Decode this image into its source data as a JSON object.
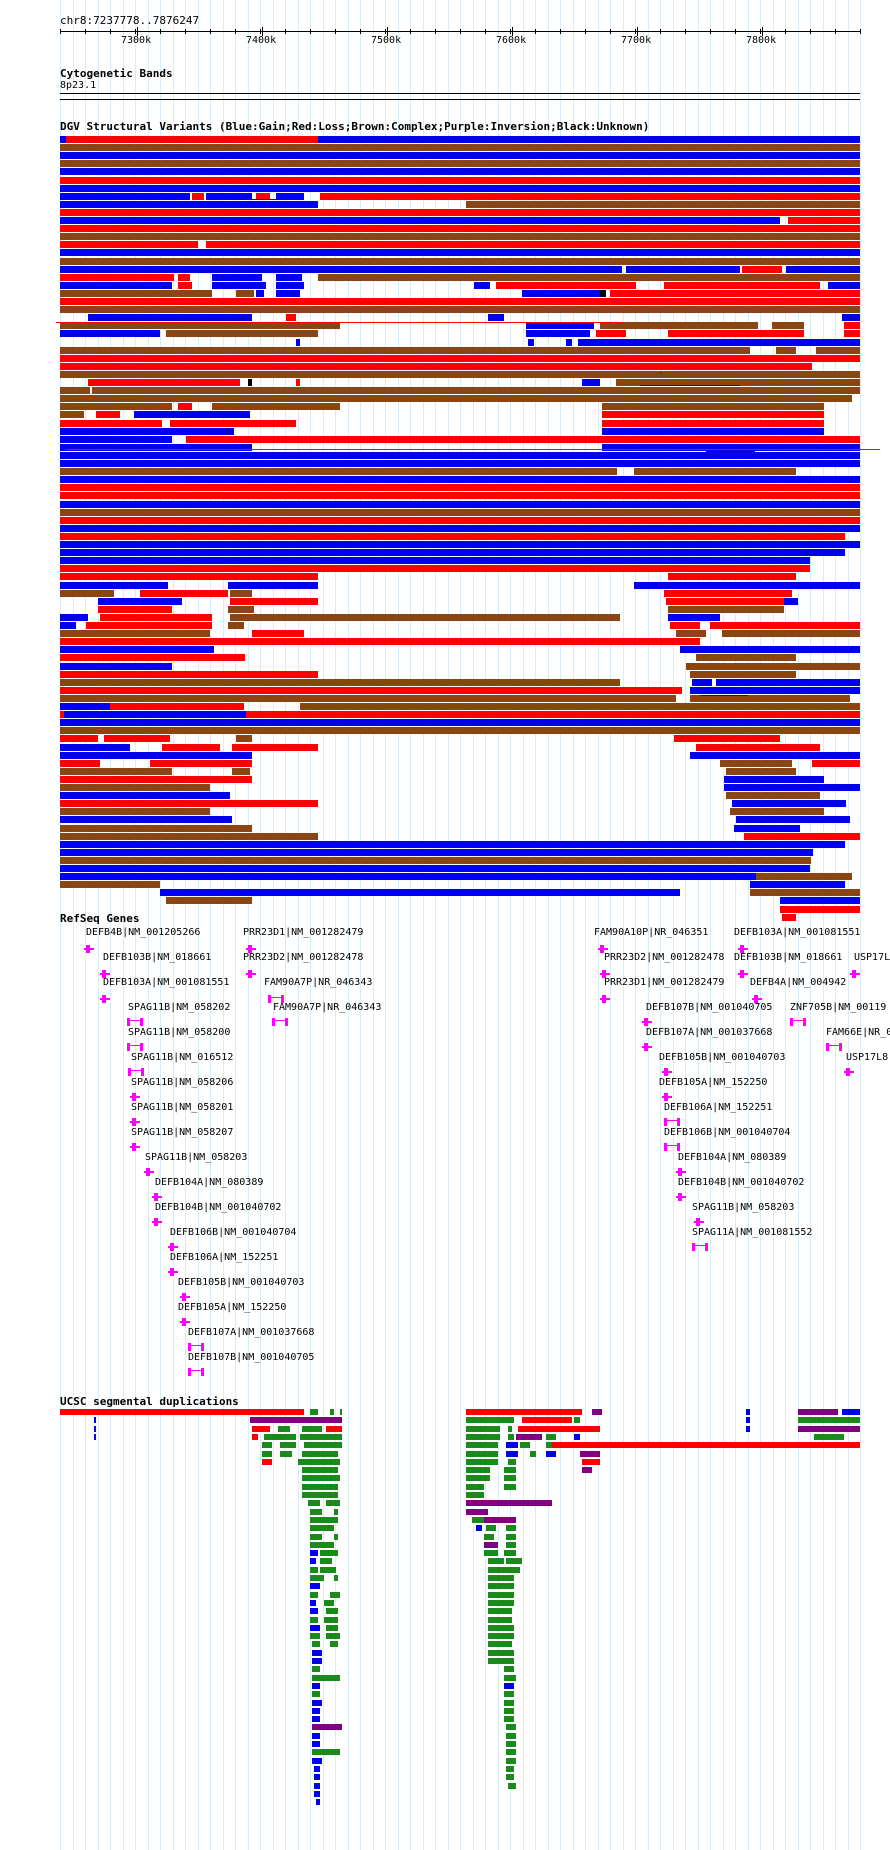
{
  "position_text": "chr8:7237778..7876247",
  "ruler": {
    "ticks": [
      "7300k",
      "7400k",
      "7500k",
      "7600k",
      "7700k",
      "7800k"
    ]
  },
  "tracks": {
    "cytoband": {
      "title": "Cytogenetic Bands",
      "band": "8p23.1"
    },
    "dgv": {
      "title": "DGV Structural Variants (Blue:Gain;Red:Loss;Brown:Complex;Purple:Inversion;Black:Unknown)"
    },
    "refseq": {
      "title": "RefSeq Genes",
      "genes": [
        "DEFB4B|NM_001205266",
        "DEFB103B|NM_018661",
        "DEFB103A|NM_001081551",
        "SPAG11B|NM_058202",
        "SPAG11B|NM_058200",
        "SPAG11B|NM_016512",
        "SPAG11B|NM_058206",
        "SPAG11B|NM_058201",
        "SPAG11B|NM_058207",
        "SPAG11B|NM_058203",
        "DEFB104A|NM_080389",
        "DEFB104B|NM_001040702",
        "DEFB106B|NM_001040704",
        "DEFB106A|NM_152251",
        "DEFB105B|NM_001040703",
        "DEFB105A|NM_152250",
        "DEFB107A|NM_001037668",
        "DEFB107B|NM_001040705",
        "PRR23D1|NM_001282479",
        "PRR23D2|NM_001282478",
        "FAM90A7P|NR_046343",
        "FAM90A7P|NR_046343",
        "FAM90A10P|NR_046351",
        "PRR23D2|NM_001282478",
        "PRR23D1|NM_001282479",
        "DEFB107B|NM_001040705",
        "DEFB107A|NM_001037668",
        "DEFB105B|NM_001040703",
        "DEFB105A|NM_152250",
        "DEFB106A|NM_152251",
        "DEFB106B|NM_001040704",
        "DEFB104A|NM_080389",
        "DEFB104B|NM_001040702",
        "SPAG11B|NM_058203",
        "SPAG11A|NM_001081552",
        "DEFB103A|NM_001081551",
        "DEFB103B|NM_018661",
        "USP17L",
        "DEFB4A|NM_004942",
        "ZNF705B|NM_00119",
        "FAM66E|NR_0",
        "USP17L8"
      ]
    },
    "segdup": {
      "title": "UCSC segmental duplications"
    }
  },
  "colors": {
    "gain": "#0000ee",
    "loss": "#ff0000",
    "complex": "#8b4513",
    "inversion": "#800080",
    "unknown": "#000000",
    "gene": "#ff00ff",
    "segdup_green": "#1a8a1a",
    "grid": "#d9ecf5"
  }
}
